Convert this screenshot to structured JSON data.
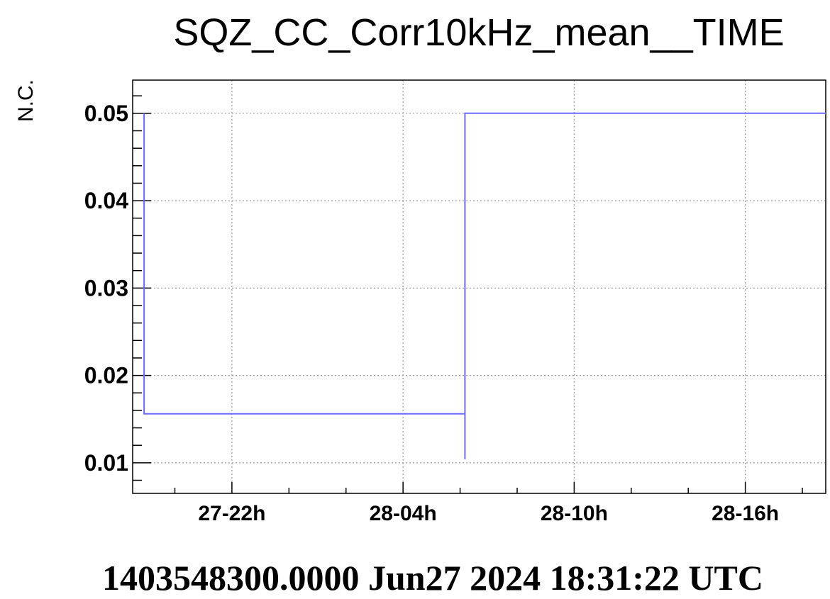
{
  "chart_data": {
    "type": "line",
    "title": "SQZ_CC_Corr10kHz_mean__TIME",
    "ylabel": "N.C.",
    "xlabel": "",
    "footer": "1403548300.0000 Jun27 2024 18:31:22 UTC",
    "x_unit": "hours since Jun27 18:31:22 UTC",
    "xlim": [
      0,
      24.3
    ],
    "ylim": [
      0.0065,
      0.0538
    ],
    "y_ticks": [
      {
        "value": 0.01,
        "label": "0.01"
      },
      {
        "value": 0.02,
        "label": "0.02"
      },
      {
        "value": 0.03,
        "label": "0.03"
      },
      {
        "value": 0.04,
        "label": "0.04"
      },
      {
        "value": 0.05,
        "label": "0.05"
      }
    ],
    "x_ticks": [
      {
        "value": 3.48,
        "label": "27-22h"
      },
      {
        "value": 9.48,
        "label": "28-04h"
      },
      {
        "value": 15.48,
        "label": "28-10h"
      },
      {
        "value": 21.48,
        "label": "28-16h"
      }
    ],
    "grid": true,
    "colors": {
      "series": "#6b6bff"
    },
    "series": [
      {
        "points": [
          [
            0.4,
            0.05
          ],
          [
            0.4,
            0.0156
          ],
          [
            2.0,
            0.0156
          ],
          [
            4.0,
            0.0156
          ],
          [
            6.0,
            0.0156
          ],
          [
            8.0,
            0.0156
          ],
          [
            9.6,
            0.0156
          ],
          [
            11.65,
            0.0156
          ],
          [
            11.65,
            0.0104
          ],
          [
            11.65,
            0.05
          ],
          [
            24.3,
            0.05
          ]
        ]
      }
    ]
  }
}
